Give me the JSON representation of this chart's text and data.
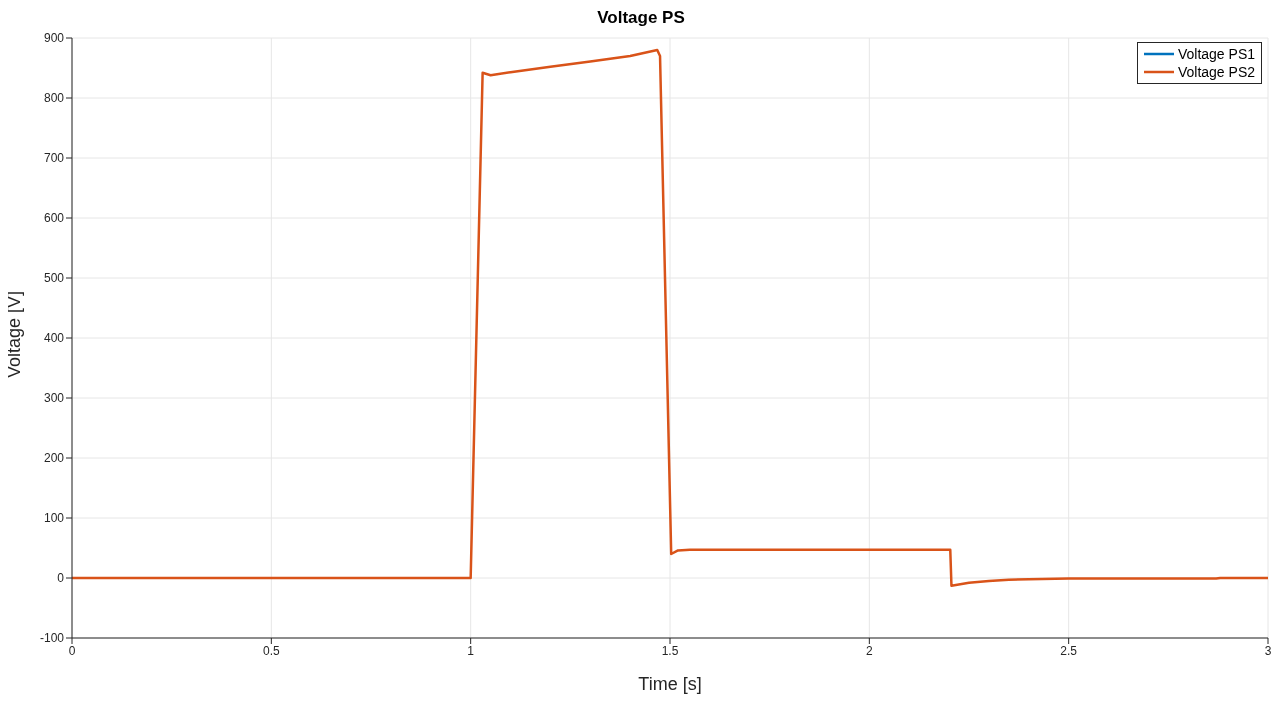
{
  "chart_data": {
    "type": "line",
    "title": "Voltage PS",
    "xlabel": "Time [s]",
    "ylabel": "Voltage [V]",
    "x": [
      0,
      1.0,
      1.03,
      1.05,
      1.1,
      1.2,
      1.3,
      1.4,
      1.468,
      1.475,
      1.503,
      1.52,
      1.55,
      1.6,
      1.8,
      2.0,
      2.203,
      2.206,
      2.25,
      2.3,
      2.35,
      2.4,
      2.5,
      2.7,
      2.87,
      2.88,
      3.0
    ],
    "series": [
      {
        "name": "Voltage PS1",
        "color": "#0072bd",
        "values": [
          null,
          null,
          null,
          null,
          null,
          null,
          null,
          null,
          null,
          null,
          null,
          null,
          null,
          null,
          null,
          null,
          null,
          null,
          null,
          null,
          null,
          null,
          null,
          null,
          null,
          null,
          null
        ]
      },
      {
        "name": "Voltage PS2",
        "color": "#d95319",
        "values": [
          0,
          0,
          842,
          838,
          843,
          852,
          861,
          870,
          880,
          870,
          40,
          46,
          47,
          47,
          47,
          47,
          47,
          -13,
          -8,
          -5,
          -3,
          -2,
          -1,
          -1,
          -1,
          0,
          0
        ]
      }
    ],
    "xlim": [
      0,
      3
    ],
    "xticks": [
      0,
      0.5,
      1,
      1.5,
      2,
      2.5,
      3
    ],
    "ylim": [
      -100,
      900
    ],
    "yticks": [
      -100,
      0,
      100,
      200,
      300,
      400,
      500,
      600,
      700,
      800,
      900
    ],
    "grid": true,
    "legend": "top right",
    "marker": "none",
    "line_style": "solid"
  }
}
